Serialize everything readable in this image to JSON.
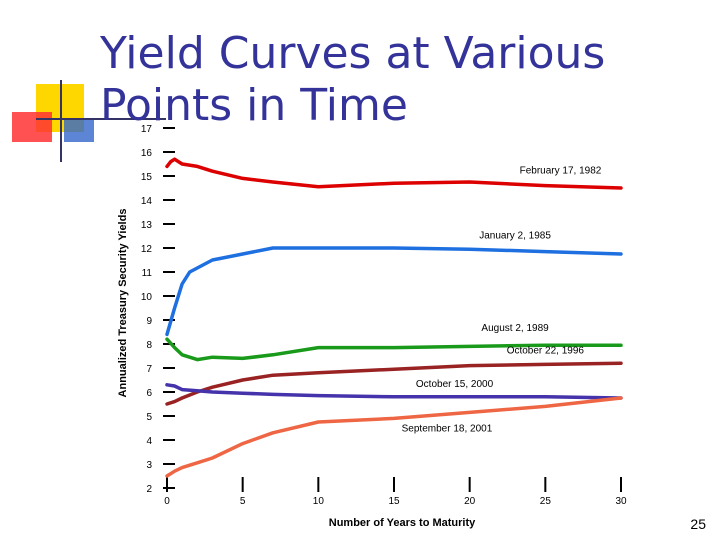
{
  "slide": {
    "title": "Yield Curves at Various Points in Time",
    "page_number": "25"
  },
  "colors": {
    "title": "#333399",
    "deco_yellow": "#FFD700",
    "deco_red": "#FF3333",
    "deco_blue": "#3366CC"
  },
  "chart_data": {
    "type": "line",
    "xlabel": "Number of Years to Maturity",
    "ylabel": "Annualized Treasury Security Yields",
    "xlim": [
      0,
      30
    ],
    "ylim": [
      2,
      17
    ],
    "xticks": [
      0,
      5,
      10,
      15,
      20,
      25,
      30
    ],
    "yticks": [
      2,
      3,
      4,
      5,
      6,
      7,
      8,
      9,
      10,
      11,
      12,
      13,
      14,
      15,
      16,
      17
    ],
    "grid": false,
    "series": [
      {
        "name": "February 17, 1982",
        "color": "#DD0000",
        "label_at": [
          26,
          15.1
        ],
        "points": [
          [
            0,
            15.4
          ],
          [
            0.25,
            15.6
          ],
          [
            0.5,
            15.7
          ],
          [
            1,
            15.5
          ],
          [
            2,
            15.4
          ],
          [
            3,
            15.2
          ],
          [
            5,
            14.9
          ],
          [
            7,
            14.75
          ],
          [
            10,
            14.55
          ],
          [
            15,
            14.7
          ],
          [
            20,
            14.75
          ],
          [
            25,
            14.6
          ],
          [
            30,
            14.5
          ]
        ]
      },
      {
        "name": "January 2, 1985",
        "color": "#1E6FE0",
        "label_at": [
          23,
          12.4
        ],
        "points": [
          [
            0,
            8.4
          ],
          [
            0.5,
            9.5
          ],
          [
            1,
            10.5
          ],
          [
            1.5,
            11.0
          ],
          [
            3,
            11.5
          ],
          [
            5,
            11.75
          ],
          [
            7,
            12.0
          ],
          [
            10,
            12.0
          ],
          [
            15,
            12.0
          ],
          [
            20,
            11.95
          ],
          [
            25,
            11.85
          ],
          [
            30,
            11.75
          ]
        ]
      },
      {
        "name": "August 2, 1989",
        "color": "#1A9A1A",
        "label_at": [
          23,
          8.55
        ],
        "points": [
          [
            0,
            8.2
          ],
          [
            0.5,
            7.85
          ],
          [
            1,
            7.55
          ],
          [
            2,
            7.35
          ],
          [
            3,
            7.45
          ],
          [
            5,
            7.4
          ],
          [
            7,
            7.55
          ],
          [
            10,
            7.85
          ],
          [
            15,
            7.85
          ],
          [
            20,
            7.9
          ],
          [
            25,
            7.95
          ],
          [
            30,
            7.95
          ]
        ]
      },
      {
        "name": "October 22, 1996",
        "color": "#992222",
        "label_at": [
          25,
          7.6
        ],
        "points": [
          [
            0,
            5.5
          ],
          [
            0.5,
            5.6
          ],
          [
            1,
            5.75
          ],
          [
            2,
            6.0
          ],
          [
            3,
            6.2
          ],
          [
            5,
            6.5
          ],
          [
            7,
            6.7
          ],
          [
            10,
            6.8
          ],
          [
            15,
            6.95
          ],
          [
            20,
            7.1
          ],
          [
            25,
            7.15
          ],
          [
            30,
            7.2
          ]
        ]
      },
      {
        "name": "October 15, 2000",
        "color": "#4433AA",
        "label_at": [
          19,
          6.2
        ],
        "points": [
          [
            0,
            6.3
          ],
          [
            0.5,
            6.25
          ],
          [
            1,
            6.1
          ],
          [
            2,
            6.05
          ],
          [
            3,
            6.0
          ],
          [
            5,
            5.95
          ],
          [
            7,
            5.9
          ],
          [
            10,
            5.85
          ],
          [
            15,
            5.8
          ],
          [
            20,
            5.8
          ],
          [
            25,
            5.8
          ],
          [
            30,
            5.75
          ]
        ]
      },
      {
        "name": "September 18, 2001",
        "color": "#EE6644",
        "label_at": [
          18.5,
          4.35
        ],
        "points": [
          [
            0,
            2.5
          ],
          [
            0.5,
            2.7
          ],
          [
            1,
            2.85
          ],
          [
            2,
            3.05
          ],
          [
            3,
            3.25
          ],
          [
            5,
            3.85
          ],
          [
            7,
            4.3
          ],
          [
            10,
            4.75
          ],
          [
            15,
            4.9
          ],
          [
            20,
            5.15
          ],
          [
            25,
            5.4
          ],
          [
            30,
            5.75
          ]
        ]
      }
    ]
  }
}
